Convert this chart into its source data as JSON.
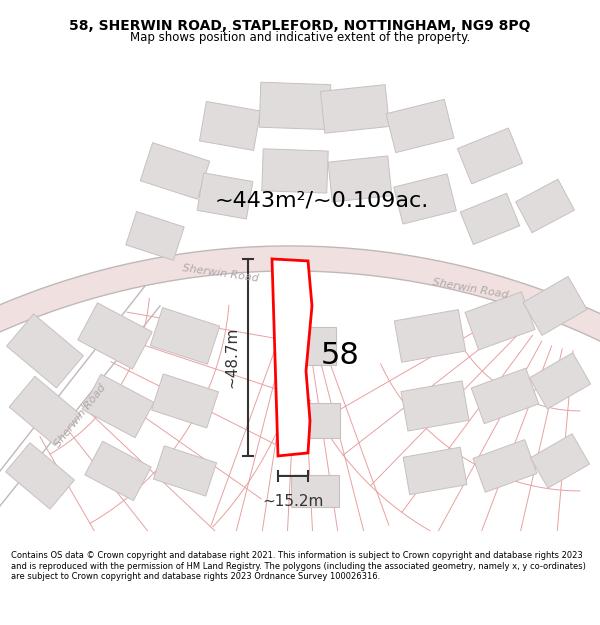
{
  "title_line1": "58, SHERWIN ROAD, STAPLEFORD, NOTTINGHAM, NG9 8PQ",
  "title_line2": "Map shows position and indicative extent of the property.",
  "area_label": "~443m²/~0.109ac.",
  "property_number": "58",
  "dim_vertical": "~48.7m",
  "dim_horizontal": "~15.2m",
  "road_label_left": "Sherwin Road",
  "road_label_right": "Sherwin Road",
  "road_label_side": "Sherwin Road",
  "footer_text": "Contains OS data © Crown copyright and database right 2021. This information is subject to Crown copyright and database rights 2023 and is reproduced with the permission of HM Land Registry. The polygons (including the associated geometry, namely x, y co-ordinates) are subject to Crown copyright and database rights 2023 Ordnance Survey 100026316.",
  "bg_color": "#ffffff",
  "road_line_color": "#e8a0a0",
  "road_fill_color": "#f0e0e0",
  "building_edge": "#c8c0c0",
  "building_fill": "#e0dcdc",
  "highlight_color": "#ff0000",
  "text_color": "#000000",
  "road_text_color": "#b0a8a8",
  "dim_color": "#333333"
}
